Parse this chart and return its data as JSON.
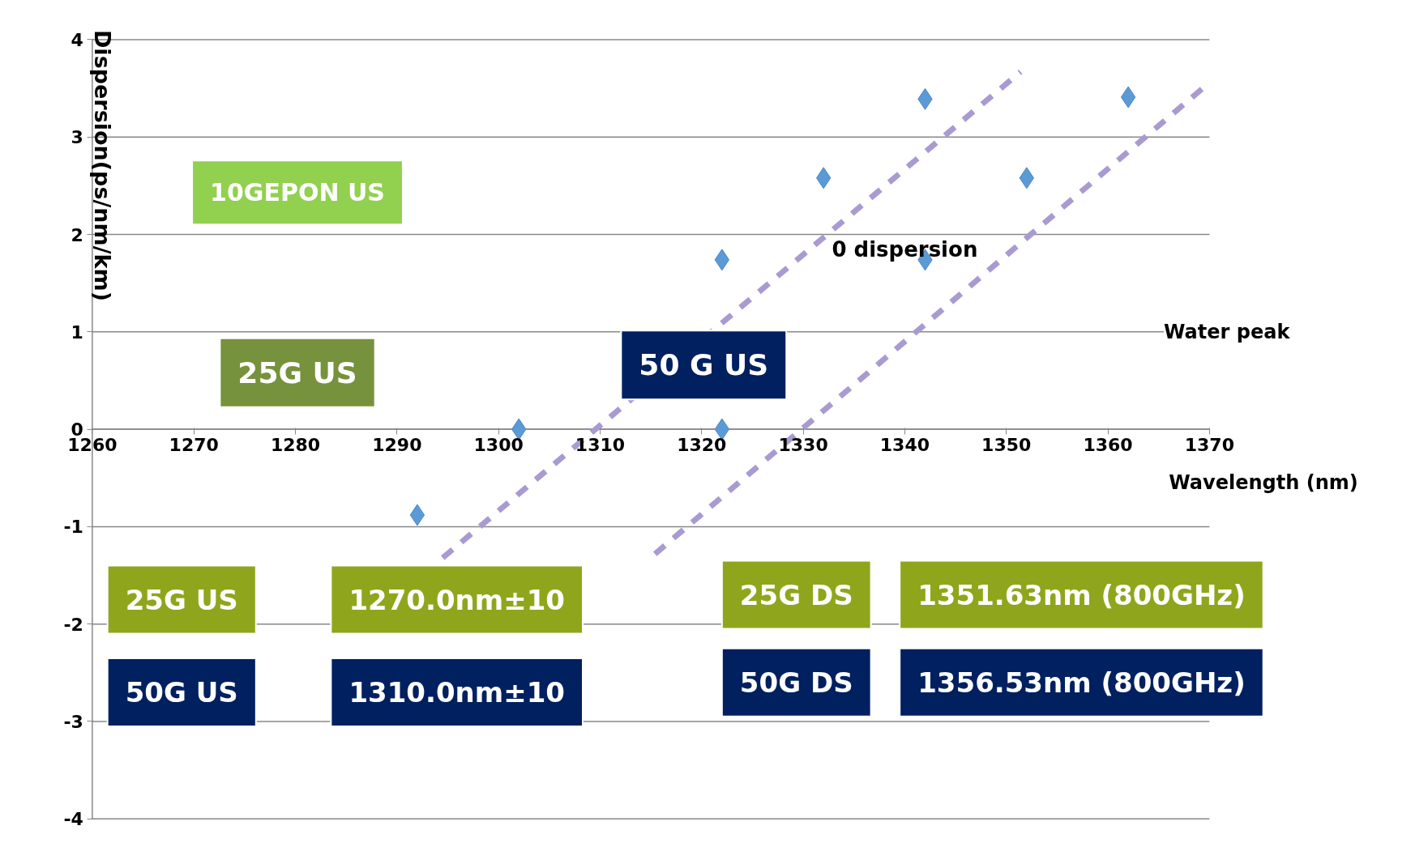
{
  "chart_data": {
    "type": "scatter",
    "xlabel": "Wavelength (nm)",
    "ylabel": "Dispersion(ps/nm/km)",
    "xlim": [
      1260,
      1370
    ],
    "xticks": [
      1260,
      1270,
      1280,
      1290,
      1300,
      1310,
      1320,
      1330,
      1340,
      1350,
      1360,
      1370
    ],
    "ylim": [
      -4,
      4
    ],
    "yticks": [
      -4,
      -3,
      -2,
      -1,
      0,
      1,
      2,
      3,
      4
    ],
    "grid": "y",
    "series": [
      {
        "marker": "diamond",
        "color": "#5b9bd5",
        "x": [
          1292,
          1302,
          1322,
          1322,
          1332,
          1342,
          1342,
          1352,
          1362
        ],
        "values": [
          -0.88,
          0,
          1.74,
          0,
          2.58,
          3.39,
          1.74,
          2.58,
          3.41
        ]
      },
      {
        "type": "line",
        "line_style": "dashed",
        "color": "#a99bd1",
        "x": [
          1294.5,
          1351.4
        ],
        "values": [
          -1.32,
          3.67
        ]
      },
      {
        "type": "line",
        "line_style": "dashed",
        "color": "#a99bd1",
        "x": [
          1315.4,
          1370
        ],
        "values": [
          -1.28,
          3.56
        ]
      }
    ],
    "annotations": [
      "25G US",
      "1270.0nm±10",
      "50G US",
      "1310.0nm±10",
      "25G DS",
      "1351.63nm (800GHz)",
      "50G DS",
      "1356.53nm (800GHz)",
      "10GEPON US",
      "25G US",
      "50 G US",
      "0 dispersion",
      "Water peak"
    ]
  }
}
